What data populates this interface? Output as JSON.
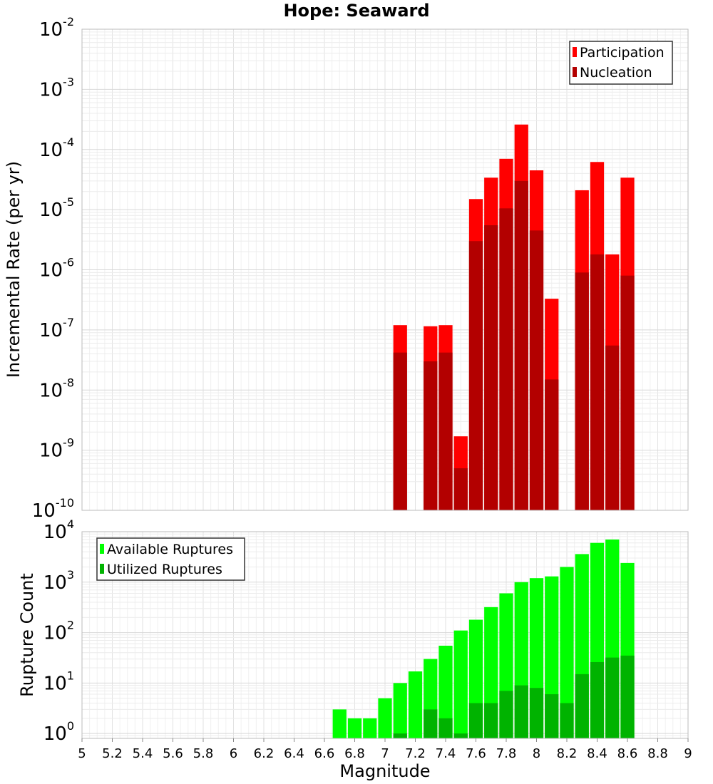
{
  "chart_data": [
    {
      "type": "bar",
      "title": "Hope: Seaward",
      "ylabel": "Incremental Rate (per yr)",
      "yscale": "log",
      "ylim": [
        1e-10,
        0.01
      ],
      "xlim": [
        5,
        9
      ],
      "y_ticks": [
        {
          "base": "10",
          "exp": "-2",
          "value": 0.01
        },
        {
          "base": "10",
          "exp": "-3",
          "value": 0.001
        },
        {
          "base": "10",
          "exp": "-4",
          "value": 0.0001
        },
        {
          "base": "10",
          "exp": "-5",
          "value": 1e-05
        },
        {
          "base": "10",
          "exp": "-6",
          "value": 1e-06
        },
        {
          "base": "10",
          "exp": "-7",
          "value": 1e-07
        },
        {
          "base": "10",
          "exp": "-8",
          "value": 1e-08
        },
        {
          "base": "10",
          "exp": "-9",
          "value": 1e-09
        },
        {
          "base": "10",
          "exp": "-10",
          "value": 1e-10
        }
      ],
      "legend_position": "top-right",
      "grid": true,
      "x": [
        7.1,
        7.3,
        7.4,
        7.5,
        7.6,
        7.7,
        7.8,
        7.9,
        8.0,
        8.1,
        8.3,
        8.4,
        8.5,
        8.6
      ],
      "series": [
        {
          "name": "Participation",
          "color": "#ff0000",
          "values": [
            1.2e-07,
            1.15e-07,
            1.2e-07,
            1.7e-09,
            1.5e-05,
            3.4e-05,
            7e-05,
            0.00026,
            4.5e-05,
            3.3e-07,
            2.1e-05,
            6.2e-05,
            1.8e-06,
            3.4e-05
          ]
        },
        {
          "name": "Nucleation",
          "color": "#b30000",
          "values": [
            4.2e-08,
            3e-08,
            4.2e-08,
            5e-10,
            3e-06,
            5.5e-06,
            1.05e-05,
            3e-05,
            4.5e-06,
            1.5e-08,
            9e-07,
            1.8e-06,
            5.5e-08,
            8e-07
          ]
        }
      ]
    },
    {
      "type": "bar",
      "ylabel": "Rupture Count",
      "xlabel": "Magnitude",
      "yscale": "log",
      "ylim": [
        0.8,
        10000
      ],
      "xlim": [
        5,
        9
      ],
      "y_ticks": [
        {
          "base": "10",
          "exp": "4",
          "value": 10000
        },
        {
          "base": "10",
          "exp": "3",
          "value": 1000
        },
        {
          "base": "10",
          "exp": "2",
          "value": 100
        },
        {
          "base": "10",
          "exp": "1",
          "value": 10
        },
        {
          "base": "10",
          "exp": "0",
          "value": 1
        }
      ],
      "x_ticks": [
        "5",
        "5.2",
        "5.4",
        "5.6",
        "5.8",
        "6",
        "6.2",
        "6.4",
        "6.6",
        "6.8",
        "7",
        "7.2",
        "7.4",
        "7.6",
        "7.8",
        "8",
        "8.2",
        "8.4",
        "8.6",
        "8.8",
        "9"
      ],
      "legend_position": "top-left",
      "grid": true,
      "x": [
        6.7,
        6.8,
        6.9,
        7.0,
        7.1,
        7.2,
        7.3,
        7.4,
        7.5,
        7.6,
        7.7,
        7.8,
        7.9,
        8.0,
        8.1,
        8.2,
        8.3,
        8.4,
        8.5,
        8.6
      ],
      "series": [
        {
          "name": "Available Ruptures",
          "color": "#00ff00",
          "values": [
            3,
            2,
            2,
            5,
            10,
            17,
            30,
            55,
            110,
            180,
            320,
            600,
            1000,
            1200,
            1300,
            2000,
            3600,
            6000,
            7000,
            2400
          ]
        },
        {
          "name": "Utilized Ruptures",
          "color": "#00b300",
          "values": [
            0,
            0,
            0,
            0,
            1,
            0,
            3,
            2,
            1,
            4,
            4,
            7,
            9,
            8,
            6,
            4,
            15,
            26,
            32,
            35
          ]
        }
      ]
    }
  ]
}
